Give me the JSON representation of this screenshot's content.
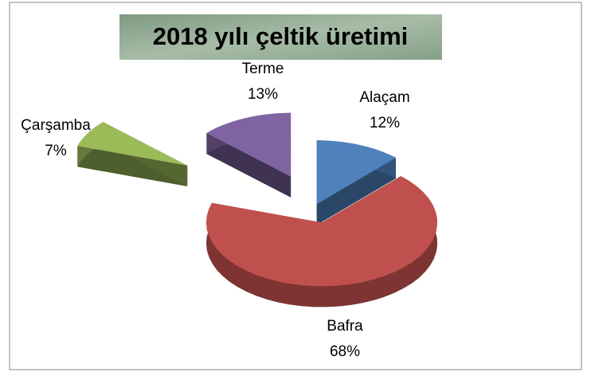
{
  "chart_data": {
    "type": "pie",
    "title": "2018 yılı çeltik üretimi",
    "categories": [
      "Alaçam",
      "Bafra",
      "Çarşamba",
      "Terme"
    ],
    "values": [
      12,
      68,
      7,
      13
    ],
    "value_labels": [
      "12%",
      "68%",
      "7%",
      "13%"
    ],
    "colors": [
      "#4f81bd",
      "#c0504d",
      "#9bbb59",
      "#8064a2"
    ]
  }
}
